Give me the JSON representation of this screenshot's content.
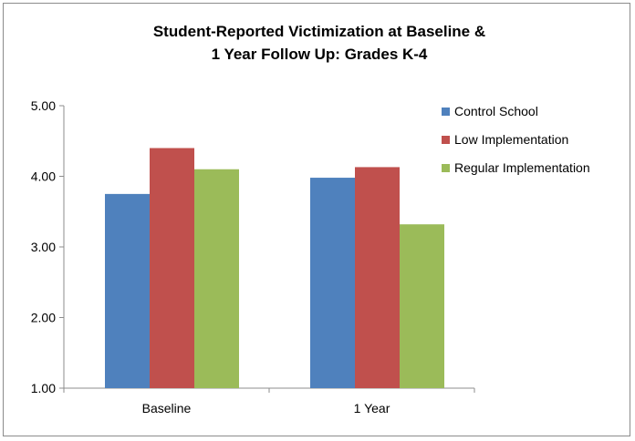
{
  "chart_data": {
    "type": "bar",
    "title_line1": "Student-Reported Victimization at Baseline &",
    "title_line2": "1 Year Follow Up: Grades K-4",
    "categories": [
      "Baseline",
      "1 Year"
    ],
    "series": [
      {
        "name": "Control School",
        "color": "#4f81bd",
        "values": [
          3.75,
          3.98
        ]
      },
      {
        "name": "Low Implementation",
        "color": "#c0504d",
        "values": [
          4.4,
          4.13
        ]
      },
      {
        "name": "Regular Implementation",
        "color": "#9bbb59",
        "values": [
          4.1,
          3.32
        ]
      }
    ],
    "ylim": [
      1.0,
      5.0
    ],
    "yticks": [
      "1.00",
      "2.00",
      "3.00",
      "4.00",
      "5.00"
    ],
    "grid": false,
    "legend_position": "right"
  }
}
